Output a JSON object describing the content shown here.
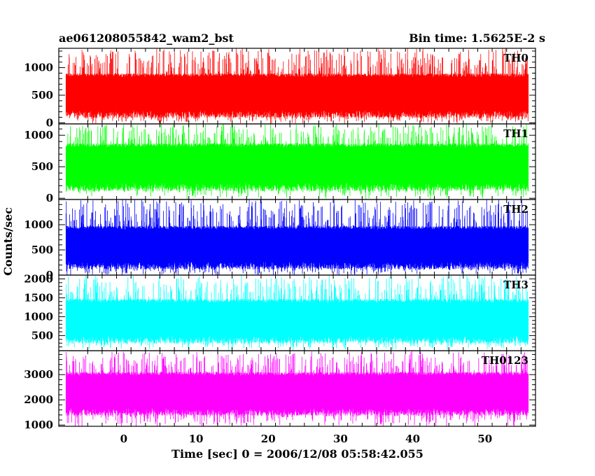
{
  "chart_data": {
    "type": "line",
    "title_left": "ae061208055842_wam2_bst",
    "title_right": "Bin time: 1.5625E-2 s",
    "xlabel": "Time [sec] 0 = 2006/12/08 05:58:42.055",
    "ylabel": "Counts/sec",
    "xlim": [
      -9,
      57
    ],
    "data_range": [
      -8,
      56
    ],
    "x_ticks": [
      0,
      10,
      20,
      30,
      40,
      50
    ],
    "panels": [
      {
        "name": "TH0",
        "color": "#ff0000",
        "ylim": [
          -20,
          1350
        ],
        "y_ticks": [
          0,
          500,
          1000
        ],
        "base_low": 160,
        "base_high": 860,
        "spike_max": 1350,
        "dip_min": 30
      },
      {
        "name": "TH1",
        "color": "#00ff00",
        "ylim": [
          -20,
          1180
        ],
        "y_ticks": [
          0,
          500,
          1000
        ],
        "base_low": 180,
        "base_high": 840,
        "spike_max": 1180,
        "dip_min": 40
      },
      {
        "name": "TH2",
        "color": "#0000ff",
        "ylim": [
          0,
          1500
        ],
        "y_ticks": [
          0,
          500,
          1000
        ],
        "base_low": 190,
        "base_high": 940,
        "spike_max": 1500,
        "dip_min": 30
      },
      {
        "name": "TH3",
        "color": "#00ffff",
        "ylim": [
          100,
          2100
        ],
        "y_ticks": [
          500,
          1000,
          1500,
          2000
        ],
        "base_low": 390,
        "base_high": 1420,
        "spike_max": 2080,
        "dip_min": 200
      },
      {
        "name": "TH0123",
        "color": "#ff00ff",
        "ylim": [
          950,
          3950
        ],
        "y_ticks": [
          1000,
          2000,
          3000
        ],
        "base_low": 1520,
        "base_high": 3030,
        "spike_max": 3900,
        "dip_min": 1000
      }
    ]
  }
}
